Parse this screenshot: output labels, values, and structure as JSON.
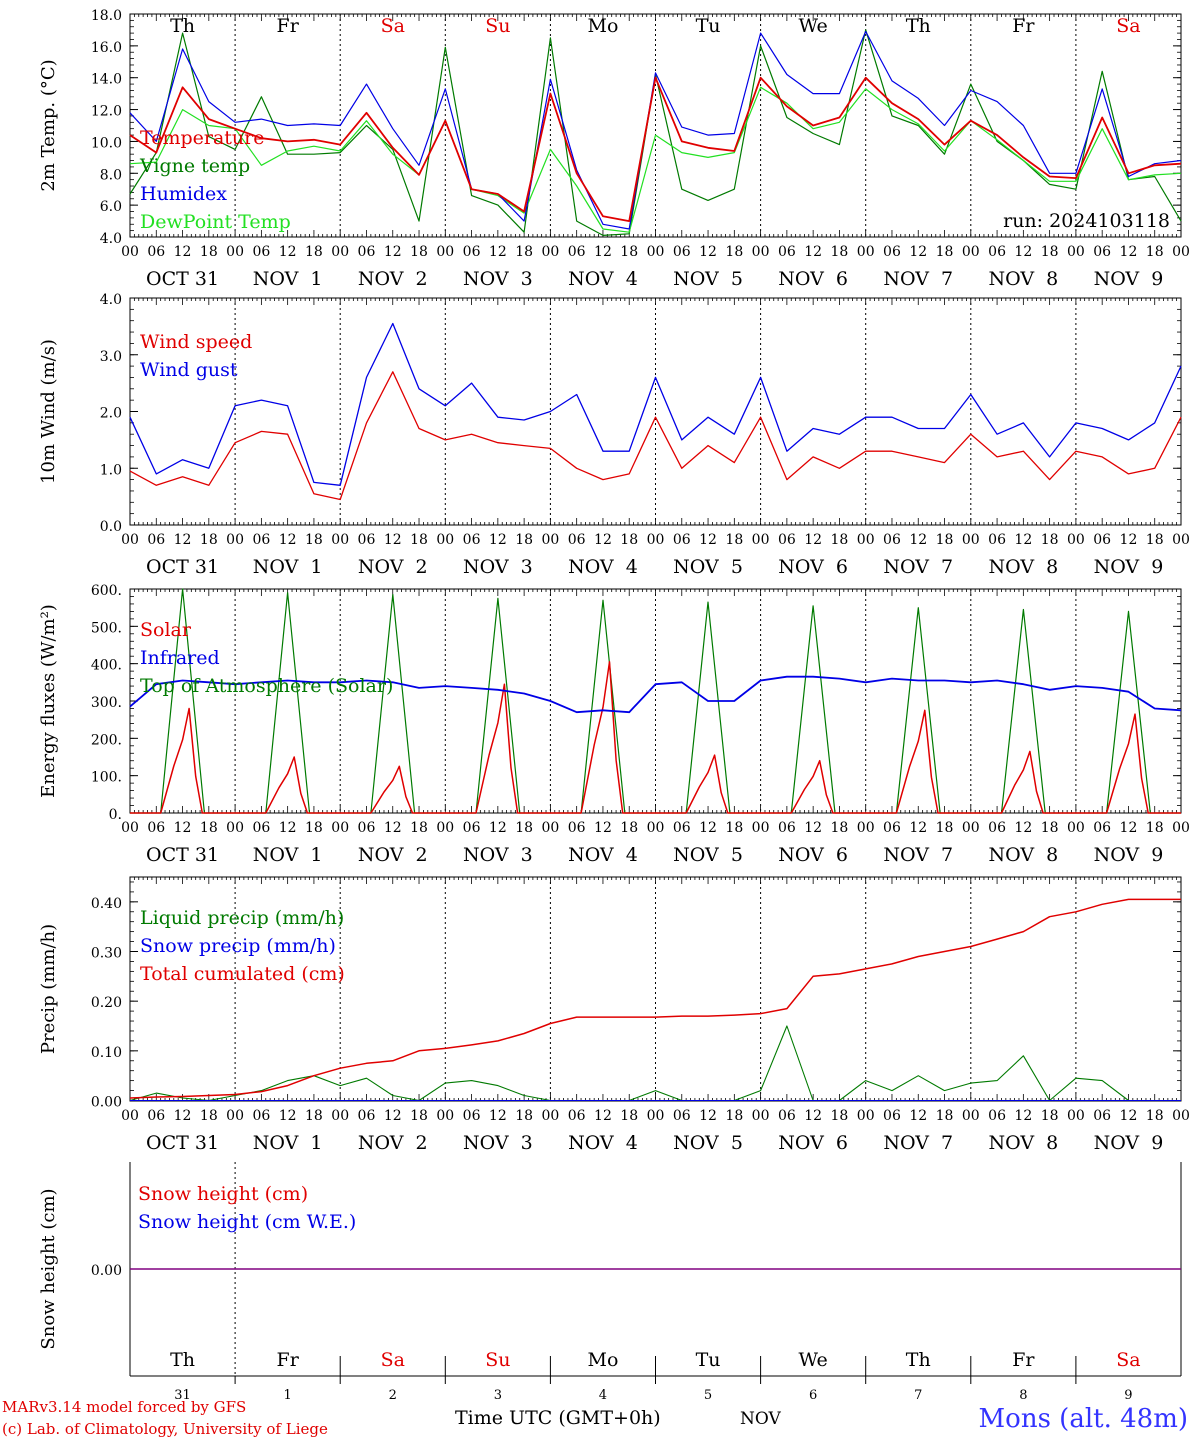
{
  "footer": {
    "model": "MARv3.14 model forced by GFS",
    "copyright": "(c) Lab. of Climatology, University of Liege",
    "time_axis": "Time UTC (GMT+0h)",
    "month": "NOV",
    "station": "Mons (alt. 48m)"
  },
  "days": [
    {
      "name": "Th",
      "weekend": false,
      "date": "OCT 31",
      "num": "31"
    },
    {
      "name": "Fr",
      "weekend": false,
      "date": "NOV  1",
      "num": "1"
    },
    {
      "name": "Sa",
      "weekend": true,
      "date": "NOV  2",
      "num": "2"
    },
    {
      "name": "Su",
      "weekend": true,
      "date": "NOV  3",
      "num": "3"
    },
    {
      "name": "Mo",
      "weekend": false,
      "date": "NOV  4",
      "num": "4"
    },
    {
      "name": "Tu",
      "weekend": false,
      "date": "NOV  5",
      "num": "5"
    },
    {
      "name": "We",
      "weekend": false,
      "date": "NOV  6",
      "num": "6"
    },
    {
      "name": "Th",
      "weekend": false,
      "date": "NOV  7",
      "num": "7"
    },
    {
      "name": "Fr",
      "weekend": false,
      "date": "NOV  8",
      "num": "8"
    },
    {
      "name": "Sa",
      "weekend": true,
      "date": "NOV  9",
      "num": "9"
    }
  ],
  "hour_ticks": [
    "00",
    "06",
    "12",
    "18"
  ],
  "colors": {
    "red": "#e00000",
    "green": "#007a00",
    "blue": "#0000e6",
    "lightgreen": "#22e022",
    "purple": "#800080",
    "grid": "#000000",
    "station": "#3333ff"
  },
  "chart_data": [
    {
      "type": "line",
      "ylabel": "2m Temp. (°C)",
      "ylim": [
        4,
        18
      ],
      "yticks": [
        "4.0",
        "6.0",
        "8.0",
        "10.0",
        "12.0",
        "14.0",
        "16.0",
        "18.0"
      ],
      "run_label": "run: 2024103118",
      "x_hours": [
        0,
        6,
        12,
        18,
        24,
        30,
        36,
        42,
        48,
        54,
        60,
        66,
        72,
        78,
        84,
        90,
        96,
        102,
        108,
        114,
        120,
        126,
        132,
        138,
        144,
        150,
        156,
        162,
        168,
        174,
        180,
        186,
        192,
        198,
        204,
        210,
        216,
        222,
        228,
        234,
        240
      ],
      "series": [
        {
          "name": "Temperature",
          "color": "red",
          "values": [
            10.4,
            9.3,
            13.4,
            11.4,
            10.8,
            10.2,
            10.0,
            10.1,
            9.8,
            11.8,
            9.6,
            7.9,
            11.3,
            7.0,
            6.7,
            5.6,
            13.0,
            8.0,
            5.3,
            5.0,
            14.0,
            10.0,
            9.6,
            9.4,
            14.0,
            12.2,
            11.0,
            11.5,
            14.0,
            12.4,
            11.4,
            9.8,
            11.3,
            10.4,
            9.0,
            7.8,
            7.7,
            11.5,
            8.0,
            8.5,
            8.6
          ]
        },
        {
          "name": "Vigne temp",
          "color": "green",
          "values": [
            6.7,
            9.3,
            16.8,
            10.3,
            9.5,
            12.8,
            9.2,
            9.2,
            9.3,
            11.0,
            9.5,
            5.0,
            15.9,
            6.6,
            6.0,
            4.3,
            16.5,
            5.0,
            4.1,
            4.2,
            14.2,
            7.0,
            6.3,
            7.0,
            16.0,
            11.5,
            10.5,
            9.8,
            17.0,
            11.6,
            11.0,
            9.2,
            13.6,
            10.0,
            8.8,
            7.3,
            7.0,
            14.4,
            7.6,
            7.8,
            5.0
          ]
        },
        {
          "name": "Humidex",
          "color": "blue",
          "values": [
            11.8,
            10.0,
            15.8,
            12.5,
            11.2,
            11.4,
            11.0,
            11.1,
            11.0,
            13.6,
            10.8,
            8.5,
            13.3,
            7.0,
            6.7,
            5.0,
            13.9,
            8.2,
            4.8,
            4.5,
            14.3,
            10.9,
            10.4,
            10.5,
            16.8,
            14.2,
            13.0,
            13.0,
            16.9,
            13.8,
            12.7,
            11.0,
            13.2,
            12.5,
            11.0,
            8.0,
            8.0,
            13.3,
            7.8,
            8.6,
            8.8
          ]
        },
        {
          "name": "DewPoint Temp",
          "color": "lightgreen",
          "values": [
            8.6,
            8.7,
            12.0,
            11.0,
            10.8,
            8.5,
            9.4,
            9.7,
            9.4,
            11.3,
            9.2,
            7.9,
            11.3,
            7.0,
            6.6,
            5.5,
            9.5,
            7.2,
            4.5,
            4.3,
            10.4,
            9.3,
            9.0,
            9.3,
            13.4,
            12.4,
            10.8,
            11.2,
            13.3,
            12.0,
            11.1,
            9.4,
            11.3,
            10.1,
            8.8,
            7.5,
            7.5,
            10.8,
            7.6,
            7.9,
            8.0
          ]
        }
      ]
    },
    {
      "type": "line",
      "ylabel": "10m Wind (m/s)",
      "ylim": [
        0,
        4
      ],
      "yticks": [
        "0.0",
        "1.0",
        "2.0",
        "3.0",
        "4.0"
      ],
      "x_hours": [
        0,
        6,
        12,
        18,
        24,
        30,
        36,
        42,
        48,
        54,
        60,
        66,
        72,
        78,
        84,
        90,
        96,
        102,
        108,
        114,
        120,
        126,
        132,
        138,
        144,
        150,
        156,
        162,
        168,
        174,
        180,
        186,
        192,
        198,
        204,
        210,
        216,
        222,
        228,
        234,
        240
      ],
      "series": [
        {
          "name": "Wind speed",
          "color": "red",
          "values": [
            0.95,
            0.7,
            0.85,
            0.7,
            1.45,
            1.65,
            1.6,
            0.55,
            0.45,
            1.8,
            2.7,
            1.7,
            1.5,
            1.6,
            1.45,
            1.4,
            1.35,
            1.0,
            0.8,
            0.9,
            1.9,
            1.0,
            1.4,
            1.1,
            1.9,
            0.8,
            1.2,
            1.0,
            1.3,
            1.3,
            1.2,
            1.1,
            1.6,
            1.2,
            1.3,
            0.8,
            1.3,
            1.2,
            0.9,
            1.0,
            1.9
          ]
        },
        {
          "name": "Wind gust",
          "color": "blue",
          "values": [
            1.9,
            0.9,
            1.15,
            1.0,
            2.1,
            2.2,
            2.1,
            0.75,
            0.7,
            2.6,
            3.55,
            2.4,
            2.1,
            2.5,
            1.9,
            1.85,
            2.0,
            2.3,
            1.3,
            1.3,
            2.6,
            1.5,
            1.9,
            1.6,
            2.6,
            1.3,
            1.7,
            1.6,
            1.9,
            1.9,
            1.7,
            1.7,
            2.3,
            1.6,
            1.8,
            1.2,
            1.8,
            1.7,
            1.5,
            1.8,
            2.8
          ]
        }
      ]
    },
    {
      "type": "line",
      "ylabel": "Energy fluxes (W/m²)",
      "ylim": [
        0,
        600
      ],
      "yticks": [
        "0.",
        "100.",
        "200.",
        "300.",
        "400.",
        "500.",
        "600."
      ],
      "solar_peaks": [
        280,
        150,
        125,
        345,
        405,
        155,
        140,
        275,
        165,
        265
      ],
      "toa_peaks": [
        600,
        590,
        585,
        575,
        570,
        565,
        555,
        550,
        545,
        540
      ],
      "infrared": {
        "x_hours": [
          0,
          6,
          12,
          18,
          24,
          30,
          36,
          42,
          48,
          54,
          60,
          66,
          72,
          78,
          84,
          90,
          96,
          102,
          108,
          114,
          120,
          126,
          132,
          138,
          144,
          150,
          156,
          162,
          168,
          174,
          180,
          186,
          192,
          198,
          204,
          210,
          216,
          222,
          228,
          234,
          240
        ],
        "values": [
          285,
          345,
          355,
          350,
          345,
          350,
          355,
          350,
          350,
          355,
          350,
          335,
          340,
          335,
          330,
          320,
          300,
          270,
          275,
          270,
          345,
          350,
          300,
          300,
          355,
          365,
          365,
          360,
          350,
          360,
          355,
          355,
          350,
          355,
          345,
          330,
          340,
          335,
          325,
          280,
          275
        ]
      },
      "series": [
        {
          "name": "Solar",
          "color": "red"
        },
        {
          "name": "Infrared",
          "color": "blue"
        },
        {
          "name": "Top of Atmosphere (Solar)",
          "color": "green"
        }
      ]
    },
    {
      "type": "line",
      "ylabel": "Precip (mm/h)",
      "ylim": [
        0,
        0.45
      ],
      "yticks": [
        "0.00",
        "0.10",
        "0.20",
        "0.30",
        "0.40"
      ],
      "x_hours": [
        0,
        6,
        12,
        18,
        24,
        30,
        36,
        42,
        48,
        54,
        60,
        66,
        72,
        78,
        84,
        90,
        96,
        102,
        108,
        114,
        120,
        126,
        132,
        138,
        144,
        150,
        156,
        162,
        168,
        174,
        180,
        186,
        192,
        198,
        204,
        210,
        216,
        222,
        228,
        234,
        240
      ],
      "series": [
        {
          "name": "Liquid precip (mm/h)",
          "color": "green",
          "values": [
            0.0,
            0.015,
            0.005,
            0.0,
            0.01,
            0.02,
            0.04,
            0.05,
            0.03,
            0.045,
            0.01,
            0.0,
            0.035,
            0.04,
            0.03,
            0.01,
            0.0,
            0.0,
            0.0,
            0.0,
            0.02,
            0.0,
            0.0,
            0.0,
            0.02,
            0.15,
            0.0,
            0.0,
            0.04,
            0.02,
            0.05,
            0.02,
            0.035,
            0.04,
            0.09,
            0.0,
            0.045,
            0.04,
            0.0,
            0.0,
            0.0
          ]
        },
        {
          "name": "Snow precip (mm/h)",
          "color": "blue",
          "values": [
            0,
            0,
            0,
            0,
            0,
            0,
            0,
            0,
            0,
            0,
            0,
            0,
            0,
            0,
            0,
            0,
            0,
            0,
            0,
            0,
            0,
            0,
            0,
            0,
            0,
            0,
            0,
            0,
            0,
            0,
            0,
            0,
            0,
            0,
            0,
            0,
            0,
            0,
            0,
            0,
            0
          ]
        },
        {
          "name": "Total cumulated (cm)",
          "color": "red",
          "values": [
            0.005,
            0.007,
            0.008,
            0.01,
            0.012,
            0.018,
            0.03,
            0.05,
            0.065,
            0.075,
            0.08,
            0.1,
            0.105,
            0.112,
            0.12,
            0.135,
            0.155,
            0.168,
            0.168,
            0.168,
            0.168,
            0.17,
            0.17,
            0.172,
            0.175,
            0.185,
            0.25,
            0.255,
            0.265,
            0.275,
            0.29,
            0.3,
            0.31,
            0.325,
            0.34,
            0.37,
            0.38,
            0.395,
            0.405,
            0.405,
            0.405
          ]
        }
      ]
    },
    {
      "type": "line",
      "ylabel": "Snow height (cm)",
      "ylim": [
        -1,
        1
      ],
      "yticks": [
        "0.00"
      ],
      "series": [
        {
          "name": "Snow height (cm)",
          "color": "red",
          "value": 0
        },
        {
          "name": "Snow height (cm W.E.)",
          "color": "blue",
          "value": 0
        }
      ]
    }
  ]
}
